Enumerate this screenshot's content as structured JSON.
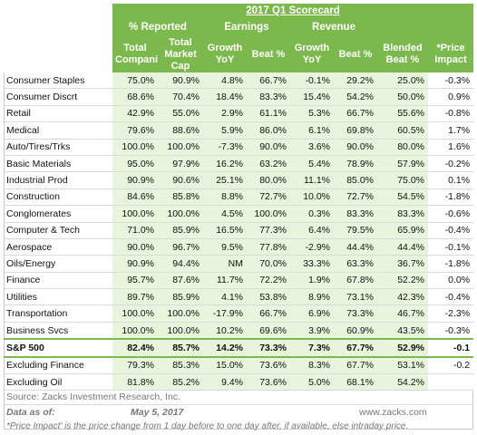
{
  "header": {
    "title": "2017 Q1 Scorecard",
    "groups": {
      "reported": "% Reported",
      "earnings": "Earnings",
      "revenue": "Revenue"
    },
    "columns": [
      "Total Companies",
      "Total Market Cap",
      "Growth YoY",
      "Beat %",
      "Growth YoY",
      "Beat %",
      "Blended Beat %",
      "*Price Impact"
    ]
  },
  "rows": [
    [
      "Consumer Staples",
      "75.0%",
      "90.9%",
      "4.8%",
      "66.7%",
      "-0.1%",
      "29.2%",
      "25.0%",
      "-0.3%"
    ],
    [
      "Consumer Discrt",
      "68.6%",
      "70.4%",
      "18.4%",
      "83.3%",
      "15.4%",
      "54.2%",
      "50.0%",
      "0.9%"
    ],
    [
      "Retail",
      "42.9%",
      "55.0%",
      "2.9%",
      "61.1%",
      "5.3%",
      "66.7%",
      "55.6%",
      "-0.8%"
    ],
    [
      "Medical",
      "79.6%",
      "88.6%",
      "5.9%",
      "86.0%",
      "6.1%",
      "69.8%",
      "60.5%",
      "1.7%"
    ],
    [
      "Auto/Tires/Trks",
      "100.0%",
      "100.0%",
      "-7.3%",
      "90.0%",
      "3.6%",
      "90.0%",
      "80.0%",
      "1.6%"
    ],
    [
      "Basic Materials",
      "95.0%",
      "97.9%",
      "16.2%",
      "63.2%",
      "5.4%",
      "78.9%",
      "57.9%",
      "-0.2%"
    ],
    [
      "Industrial Prod",
      "90.9%",
      "90.6%",
      "25.1%",
      "80.0%",
      "11.1%",
      "85.0%",
      "75.0%",
      "0.1%"
    ],
    [
      "Construction",
      "84.6%",
      "85.8%",
      "8.8%",
      "72.7%",
      "10.0%",
      "72.7%",
      "54.5%",
      "-1.8%"
    ],
    [
      "Conglomerates",
      "100.0%",
      "100.0%",
      "4.5%",
      "100.0%",
      "0.3%",
      "83.3%",
      "83.3%",
      "-0.6%"
    ],
    [
      "Computer & Tech",
      "71.0%",
      "85.9%",
      "16.5%",
      "77.3%",
      "6.4%",
      "79.5%",
      "65.9%",
      "-0.4%"
    ],
    [
      "Aerospace",
      "90.0%",
      "96.7%",
      "9.5%",
      "77.8%",
      "-2.9%",
      "44.4%",
      "44.4%",
      "-0.1%"
    ],
    [
      "Oils/Energy",
      "90.9%",
      "94.4%",
      "NM",
      "70.0%",
      "33.3%",
      "63.3%",
      "36.7%",
      "-1.8%"
    ],
    [
      "Finance",
      "95.7%",
      "87.6%",
      "11.7%",
      "72.2%",
      "1.9%",
      "67.8%",
      "52.2%",
      "0.0%"
    ],
    [
      "Utilities",
      "89.7%",
      "85.9%",
      "4.1%",
      "53.8%",
      "8.9%",
      "73.1%",
      "42.3%",
      "-0.4%"
    ],
    [
      "Transportation",
      "100.0%",
      "100.0%",
      "-17.9%",
      "66.7%",
      "6.9%",
      "73.3%",
      "46.7%",
      "-2.3%"
    ],
    [
      "Business Svcs",
      "100.0%",
      "100.0%",
      "10.2%",
      "69.6%",
      "3.9%",
      "60.9%",
      "43.5%",
      "-0.3%"
    ]
  ],
  "sp500": [
    "S&P 500",
    "82.4%",
    "85.7%",
    "14.2%",
    "73.3%",
    "7.3%",
    "67.7%",
    "52.9%",
    "-0.1"
  ],
  "excluding": [
    [
      "Excluding Finance",
      "79.3%",
      "85.3%",
      "15.0%",
      "73.6%",
      "8.3%",
      "67.7%",
      "53.1%",
      "-0.2"
    ],
    [
      "Excluding Oil",
      "81.8%",
      "85.2%",
      "9.4%",
      "73.6%",
      "5.0%",
      "68.1%",
      "54.2%",
      ""
    ]
  ],
  "footer": {
    "source": "Source: Zacks Investment Research, Inc.",
    "as_of_label": "Data as of:",
    "as_of_date": "May 5, 2017",
    "site": "www.zacks.com",
    "note": "*Price Impact' is the price change from 1 day before to one day after, if available, else intraday price."
  }
}
